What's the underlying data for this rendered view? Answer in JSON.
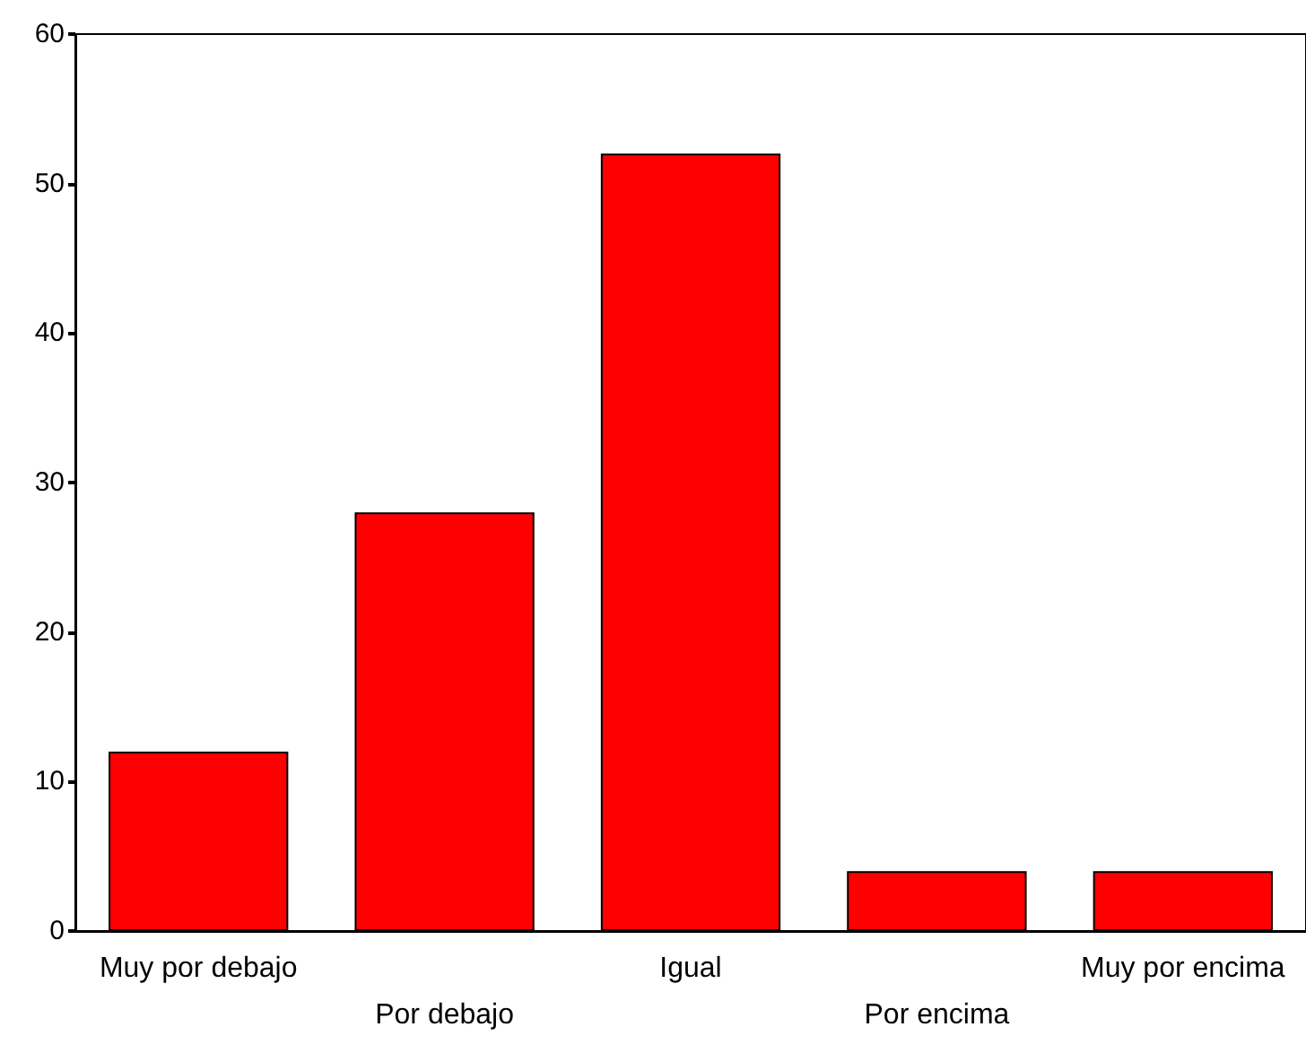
{
  "chart_data": {
    "type": "bar",
    "categories": [
      "Muy por debajo",
      "Por debajo",
      "Igual",
      "Por encima",
      "Muy por encima"
    ],
    "values": [
      12,
      28,
      52,
      4,
      4
    ],
    "color": "#ff0000",
    "ylim": [
      0,
      60
    ],
    "yticks": [
      0,
      10,
      20,
      30,
      40,
      50,
      60
    ],
    "grid": false
  }
}
